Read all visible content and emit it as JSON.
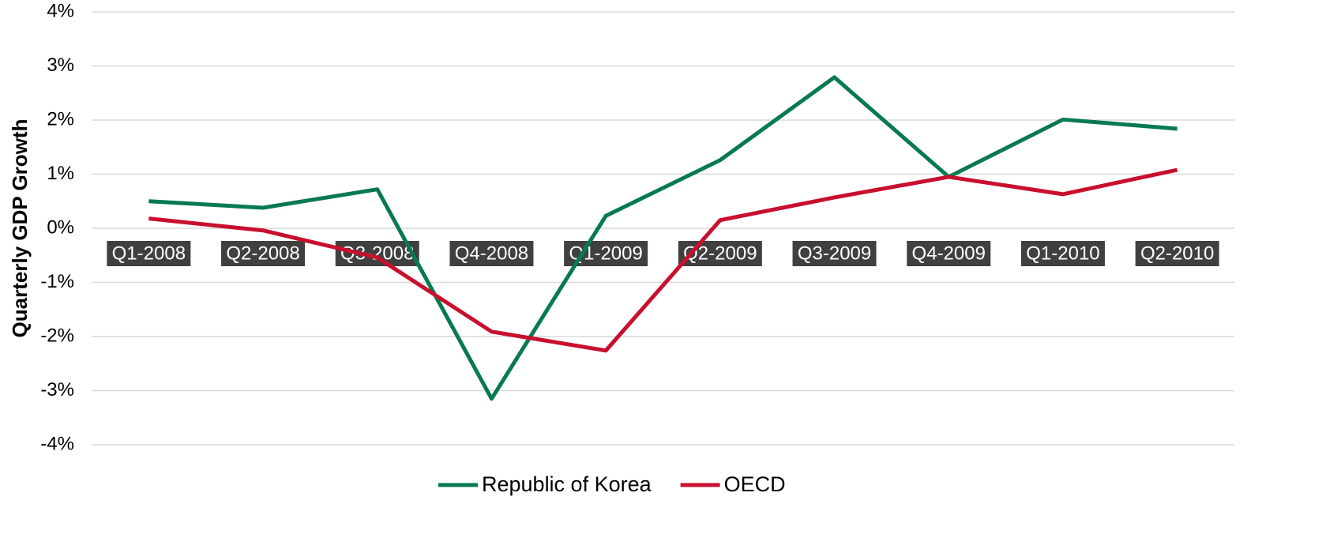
{
  "chart_data": {
    "type": "line",
    "y_label": "Quarterly GDP Growth",
    "categories": [
      "Q1-2008",
      "Q2-2008",
      "Q3-2008",
      "Q4-2008",
      "Q1-2009",
      "Q2-2009",
      "Q3-2009",
      "Q4-2009",
      "Q1-2010",
      "Q2-2010"
    ],
    "series": [
      {
        "name": "Republic of Korea",
        "color": "#077a4f",
        "values": [
          0.5,
          0.38,
          0.72,
          -3.15,
          0.23,
          1.26,
          2.79,
          0.95,
          2.01,
          1.84
        ]
      },
      {
        "name": "OECD",
        "color": "#c8102e",
        "values": [
          0.18,
          -0.04,
          -0.54,
          -1.91,
          -2.26,
          0.15,
          0.57,
          0.95,
          0.63,
          1.08
        ]
      }
    ],
    "ylim": [
      -4,
      4
    ],
    "yticks": [
      {
        "value": -4,
        "label": "-4%"
      },
      {
        "value": -3,
        "label": "-3%"
      },
      {
        "value": -2,
        "label": "-2%"
      },
      {
        "value": -1,
        "label": "-1%"
      },
      {
        "value": 0,
        "label": "0%"
      },
      {
        "value": 1,
        "label": "1%"
      },
      {
        "value": 2,
        "label": "2%"
      },
      {
        "value": 3,
        "label": "3%"
      },
      {
        "value": 4,
        "label": "4%"
      }
    ],
    "grid": true,
    "legend": "bottom"
  }
}
